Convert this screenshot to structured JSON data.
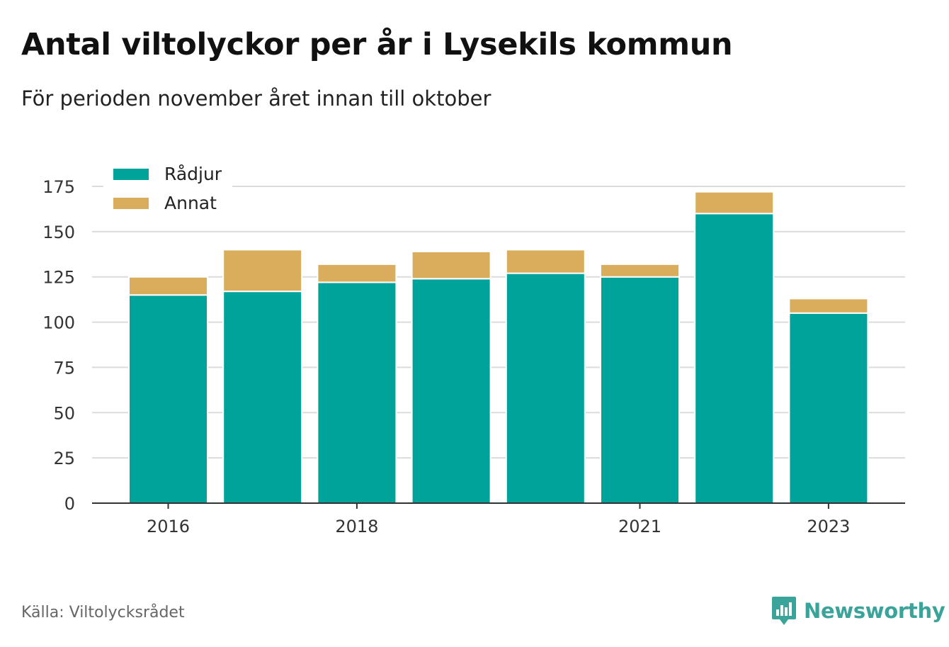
{
  "title": "Antal viltolyckor per år i Lysekils kommun",
  "subtitle": "För perioden november året innan till oktober",
  "source": "Källa: Viltolycksrådet",
  "brand": {
    "name": "Newsworthy",
    "icon": "newsworthy-logo-icon",
    "color": "#3aa39a"
  },
  "chart_data": {
    "type": "bar",
    "stacked": true,
    "categories": [
      "2016",
      "2017",
      "2018",
      "2019",
      "2020",
      "2021",
      "2022",
      "2023"
    ],
    "x_tick_labels": [
      "2016",
      "",
      "2018",
      "",
      "",
      "2021",
      "",
      "2023"
    ],
    "series": [
      {
        "name": "Rådjur",
        "color": "#00a39a",
        "values": [
          115,
          117,
          122,
          124,
          127,
          125,
          160,
          105
        ]
      },
      {
        "name": "Annat",
        "color": "#d9ad5c",
        "values": [
          10,
          23,
          10,
          15,
          13,
          7,
          12,
          8
        ]
      }
    ],
    "ylim": [
      0,
      175
    ],
    "yticks": [
      0,
      25,
      50,
      75,
      100,
      125,
      150,
      175
    ],
    "grid": true,
    "legend": "top-left"
  }
}
